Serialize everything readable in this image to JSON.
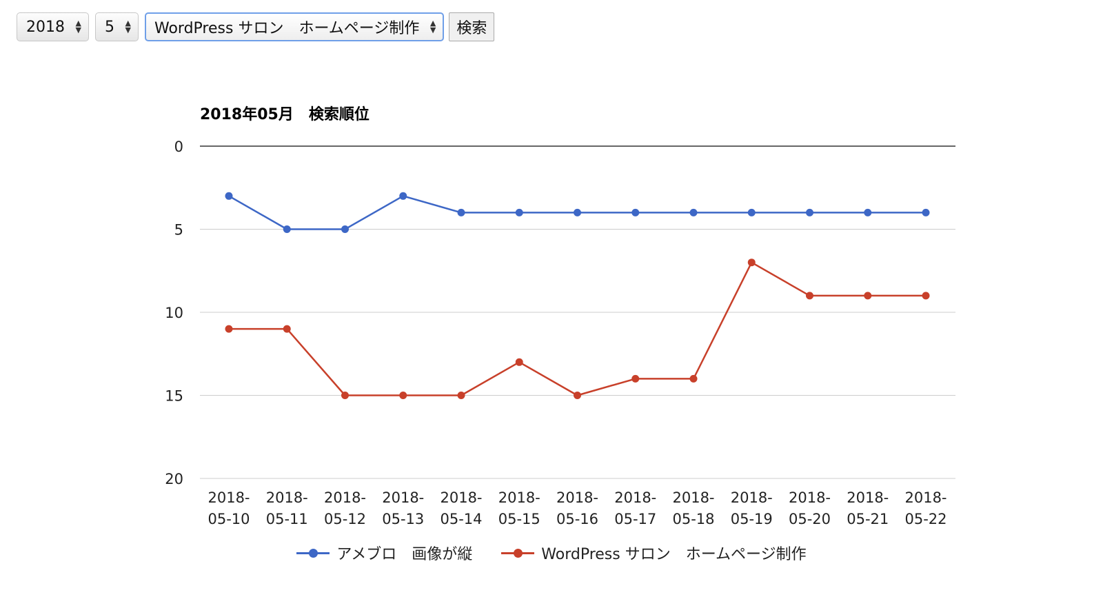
{
  "controls": {
    "year_select": "2018",
    "month_select": "5",
    "keyword_select": "WordPress サロン　ホームページ制作",
    "search_button": "検索"
  },
  "chart_data": {
    "type": "line",
    "title": "2018年05月　検索順位",
    "categories": [
      "2018-05-10",
      "2018-05-11",
      "2018-05-12",
      "2018-05-13",
      "2018-05-14",
      "2018-05-15",
      "2018-05-16",
      "2018-05-17",
      "2018-05-18",
      "2018-05-19",
      "2018-05-20",
      "2018-05-21",
      "2018-05-22"
    ],
    "x_tick_labels": [
      [
        "2018-",
        "05-10"
      ],
      [
        "2018-",
        "05-11"
      ],
      [
        "2018-",
        "05-12"
      ],
      [
        "2018-",
        "05-13"
      ],
      [
        "2018-",
        "05-14"
      ],
      [
        "2018-",
        "05-15"
      ],
      [
        "2018-",
        "05-16"
      ],
      [
        "2018-",
        "05-17"
      ],
      [
        "2018-",
        "05-18"
      ],
      [
        "2018-",
        "05-19"
      ],
      [
        "2018-",
        "05-20"
      ],
      [
        "2018-",
        "05-21"
      ],
      [
        "2018-",
        "05-22"
      ]
    ],
    "y_ticks": [
      0,
      5,
      10,
      15,
      20
    ],
    "ylim": [
      0,
      20
    ],
    "y_reversed": true,
    "grid": true,
    "legend_position": "bottom",
    "series": [
      {
        "name": "アメブロ　画像が縦",
        "color": "#3d67c6",
        "values": [
          3,
          5,
          5,
          3,
          4,
          4,
          4,
          4,
          4,
          4,
          4,
          4,
          4
        ]
      },
      {
        "name": "WordPress サロン　ホームページ制作",
        "color": "#c8402a",
        "values": [
          11,
          11,
          15,
          15,
          15,
          13,
          15,
          14,
          14,
          7,
          9,
          9,
          9
        ]
      }
    ]
  }
}
